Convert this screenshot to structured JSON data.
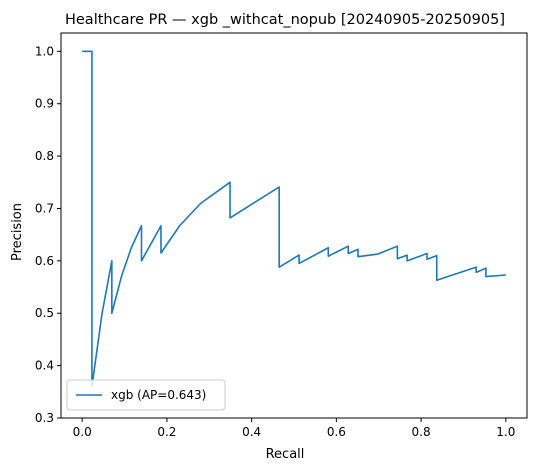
{
  "chart_data": {
    "type": "line",
    "title": "Healthcare PR — xgb _withcat_nopub [20240905-20250905]",
    "xlabel": "Recall",
    "ylabel": "Precision",
    "xlim": [
      -0.05,
      1.05
    ],
    "ylim": [
      0.3,
      1.035
    ],
    "xticks": [
      0.0,
      0.2,
      0.4,
      0.6,
      0.8,
      1.0
    ],
    "xtick_labels": [
      "0.0",
      "0.2",
      "0.4",
      "0.6",
      "0.8",
      "1.0"
    ],
    "yticks": [
      0.3,
      0.4,
      0.5,
      0.6,
      0.7,
      0.8,
      0.9,
      1.0
    ],
    "ytick_labels": [
      "0.3",
      "0.4",
      "0.5",
      "0.6",
      "0.7",
      "0.8",
      "0.9",
      "1.0"
    ],
    "grid": false,
    "legend_position": "lower-left",
    "colors": {
      "series": "#1f77b4",
      "axes": "#000000"
    },
    "series": [
      {
        "name": "xgb (AP=0.643)",
        "x": [
          0.0,
          0.023,
          0.023,
          0.023,
          0.047,
          0.07,
          0.07,
          0.093,
          0.116,
          0.14,
          0.14,
          0.186,
          0.186,
          0.23,
          0.28,
          0.349,
          0.349,
          0.465,
          0.465,
          0.512,
          0.512,
          0.581,
          0.581,
          0.628,
          0.628,
          0.651,
          0.651,
          0.698,
          0.744,
          0.744,
          0.767,
          0.767,
          0.814,
          0.814,
          0.837,
          0.837,
          0.93,
          0.93,
          0.953,
          0.953,
          1.0
        ],
        "y": [
          1.0,
          1.0,
          0.5,
          0.36,
          0.5,
          0.6,
          0.5,
          0.571,
          0.625,
          0.667,
          0.6,
          0.667,
          0.615,
          0.667,
          0.71,
          0.75,
          0.682,
          0.741,
          0.588,
          0.611,
          0.595,
          0.625,
          0.609,
          0.628,
          0.614,
          0.622,
          0.608,
          0.613,
          0.628,
          0.604,
          0.611,
          0.6,
          0.614,
          0.603,
          0.61,
          0.563,
          0.588,
          0.578,
          0.586,
          0.57,
          0.573
        ]
      }
    ]
  }
}
